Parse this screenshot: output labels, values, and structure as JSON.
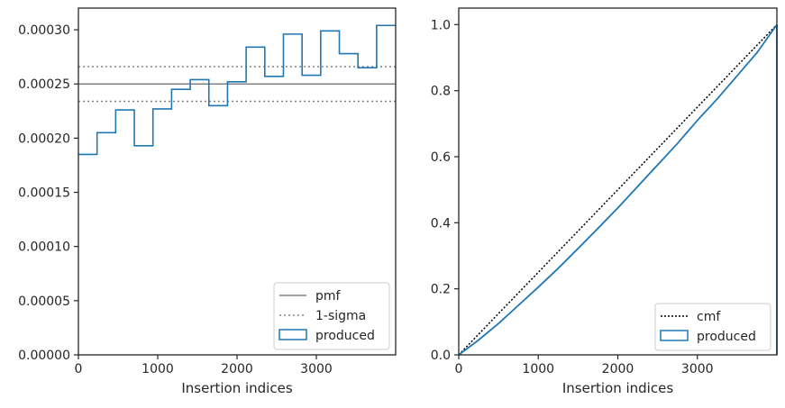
{
  "chart_data": [
    {
      "type": "line",
      "xlabel": "Insertion indices",
      "ylabel": "",
      "xlim": [
        0,
        4000
      ],
      "ylim": [
        0,
        0.00032
      ],
      "x_ticks": [
        0,
        1000,
        2000,
        3000
      ],
      "x_tick_labels": [
        "0",
        "1000",
        "2000",
        "3000"
      ],
      "y_ticks": [
        0,
        5e-05,
        0.0001,
        0.00015,
        0.0002,
        0.00025,
        0.0003
      ],
      "y_tick_labels": [
        "0.00000",
        "0.00005",
        "0.00010",
        "0.00015",
        "0.00020",
        "0.00025",
        "0.00030"
      ],
      "grid": false,
      "legend_position": "lower-right",
      "pmf": {
        "name": "pmf",
        "value": 0.00025,
        "color": "#808080"
      },
      "sigma": {
        "name": "1-sigma",
        "lower": 0.000234,
        "upper": 0.000266,
        "color": "#808080"
      },
      "histogram": {
        "name": "produced",
        "color": "#1f77b4",
        "bin_edges": [
          0,
          235,
          470,
          705,
          940,
          1175,
          1410,
          1645,
          1880,
          2115,
          2350,
          2585,
          2820,
          3055,
          3290,
          3525,
          3760,
          4000
        ],
        "values": [
          0.000185,
          0.000205,
          0.000226,
          0.000193,
          0.000227,
          0.000245,
          0.000254,
          0.00023,
          0.000252,
          0.000284,
          0.000257,
          0.000296,
          0.000258,
          0.000299,
          0.000278,
          0.000265,
          0.000304
        ]
      }
    },
    {
      "type": "line",
      "xlabel": "Insertion indices",
      "ylabel": "",
      "xlim": [
        0,
        4000
      ],
      "ylim": [
        0,
        1.05
      ],
      "x_ticks": [
        0,
        1000,
        2000,
        3000
      ],
      "x_tick_labels": [
        "0",
        "1000",
        "2000",
        "3000"
      ],
      "y_ticks": [
        0,
        0.2,
        0.4,
        0.6,
        0.8,
        1.0
      ],
      "y_tick_labels": [
        "0.0",
        "0.2",
        "0.4",
        "0.6",
        "0.8",
        "1.0"
      ],
      "grid": false,
      "legend_position": "lower-right",
      "cmf": {
        "name": "cmf",
        "x": [
          0,
          4000
        ],
        "y": [
          0,
          1.0
        ],
        "color": "#000000"
      },
      "produced": {
        "name": "produced",
        "color": "#1f77b4",
        "x": [
          0,
          250,
          500,
          750,
          1000,
          1250,
          1500,
          1750,
          2000,
          2250,
          2500,
          2750,
          3000,
          3250,
          3500,
          3750,
          4000
        ],
        "y": [
          0,
          0.045,
          0.095,
          0.15,
          0.205,
          0.262,
          0.322,
          0.383,
          0.445,
          0.51,
          0.575,
          0.64,
          0.71,
          0.775,
          0.845,
          0.915,
          1.0
        ]
      }
    }
  ]
}
